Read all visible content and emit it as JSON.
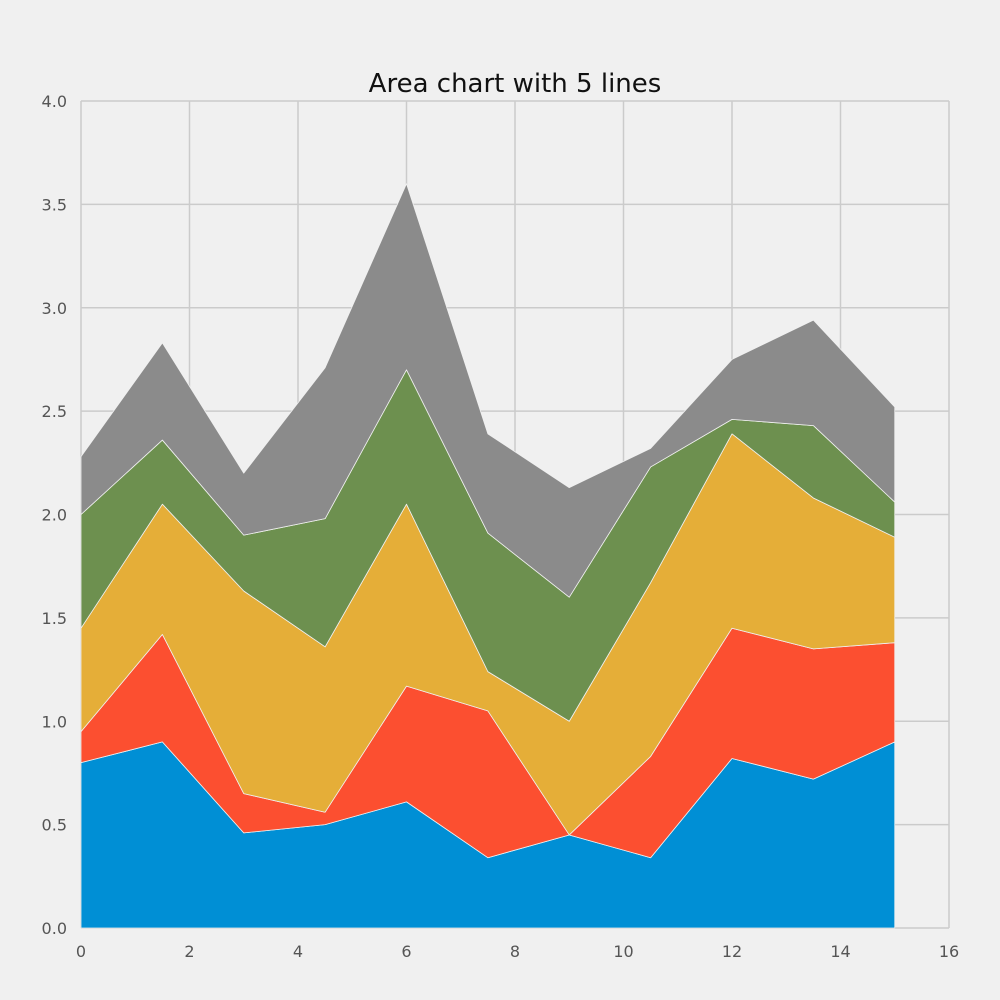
{
  "chart_data": {
    "type": "area",
    "stacked": true,
    "title": "Area chart with 5 lines",
    "xlabel": "",
    "ylabel": "",
    "xlim": [
      0,
      16
    ],
    "ylim": [
      0,
      4.0
    ],
    "x_ticks": [
      "0",
      "2",
      "4",
      "6",
      "8",
      "10",
      "12",
      "14",
      "16"
    ],
    "y_ticks": [
      "0.0",
      "0.5",
      "1.0",
      "1.5",
      "2.0",
      "2.5",
      "3.0",
      "3.5",
      "4.0"
    ],
    "grid": true,
    "legend": false,
    "x": [
      0,
      1.5,
      3,
      4.5,
      6,
      7.5,
      9,
      10.5,
      12,
      13.5,
      15
    ],
    "series": [
      {
        "color": "#008fd5",
        "values": [
          0.8,
          0.9,
          0.46,
          0.5,
          0.61,
          0.34,
          0.45,
          0.34,
          0.82,
          0.72,
          0.9
        ]
      },
      {
        "color": "#fc4f30",
        "values": [
          0.15,
          0.52,
          0.19,
          0.06,
          0.56,
          0.71,
          0.0,
          0.49,
          0.63,
          0.63,
          0.48
        ]
      },
      {
        "color": "#e5ae38",
        "values": [
          0.5,
          0.63,
          0.98,
          0.8,
          0.88,
          0.19,
          0.55,
          0.84,
          0.94,
          0.73,
          0.51
        ]
      },
      {
        "color": "#6d904f",
        "values": [
          0.55,
          0.31,
          0.27,
          0.62,
          0.65,
          0.67,
          0.6,
          0.56,
          0.07,
          0.35,
          0.17
        ]
      },
      {
        "color": "#8b8b8b",
        "values": [
          0.28,
          0.47,
          0.3,
          0.73,
          0.9,
          0.48,
          0.53,
          0.09,
          0.29,
          0.51,
          0.46
        ]
      }
    ]
  }
}
